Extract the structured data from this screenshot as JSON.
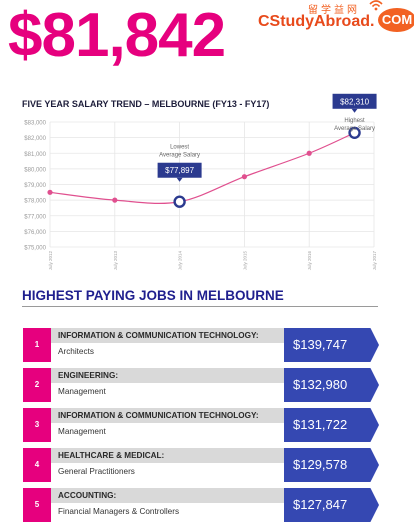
{
  "headline": {
    "amount": "$81,842",
    "color": "#e6007e"
  },
  "watermark": {
    "chinese": "留学益网",
    "main_text": "CStudyAbroad.",
    "com_badge": "COM",
    "main_color": "#e84a1b",
    "badge_color": "#f26122",
    "icon": "wifi-icon"
  },
  "chart_data": {
    "type": "line",
    "title": "FIVE YEAR SALARY TREND – MELBOURNE (FY13 - FY17)",
    "y_ticks": [
      "$83,000",
      "$82,000",
      "$81,000",
      "$80,000",
      "$79,000",
      "$78,000",
      "$77,000",
      "$76,000",
      "$75,000"
    ],
    "x_ticks": [
      "July 2012",
      "July 2013",
      "July 2014",
      "July 2015",
      "July 2016",
      "July 2017"
    ],
    "ylim": [
      75000,
      83000
    ],
    "xlim": [
      2012.5,
      2017.5
    ],
    "grid": true,
    "line_color": "#e0508f",
    "series": [
      {
        "x": [
          2012.5,
          2013.5,
          2014.5,
          2015.5,
          2016.5,
          2017.2
        ],
        "values": [
          78500,
          78000,
          77897,
          79500,
          81000,
          82310
        ]
      }
    ],
    "highlight_points": [
      {
        "x": 2014.5,
        "value": 77897,
        "label": "$77,897",
        "note": "Lowest Average Salary",
        "note_position": "above"
      },
      {
        "x": 2017.2,
        "value": 82310,
        "label": "$82,310",
        "note": "Highest Average Salary",
        "note_position": "below"
      }
    ],
    "label_box_color": "#2b3a8f"
  },
  "jobs": {
    "title": "HIGHEST PAYING JOBS IN MELBOURNE",
    "rank_color": "#e6007e",
    "category_bg": "#d9d9d9",
    "salary_color": "#3548b2",
    "items": [
      {
        "rank": "1",
        "category": "INFORMATION & COMMUNICATION TECHNOLOGY:",
        "role": "Architects",
        "salary": "$139,747"
      },
      {
        "rank": "2",
        "category": "ENGINEERING:",
        "role": "Management",
        "salary": "$132,980"
      },
      {
        "rank": "3",
        "category": "INFORMATION & COMMUNICATION TECHNOLOGY:",
        "role": "Management",
        "salary": "$131,722"
      },
      {
        "rank": "4",
        "category": "HEALTHCARE & MEDICAL:",
        "role": "General Practitioners",
        "salary": "$129,578"
      },
      {
        "rank": "5",
        "category": "ACCOUNTING:",
        "role": "Financial Managers & Controllers",
        "salary": "$127,847"
      }
    ]
  }
}
